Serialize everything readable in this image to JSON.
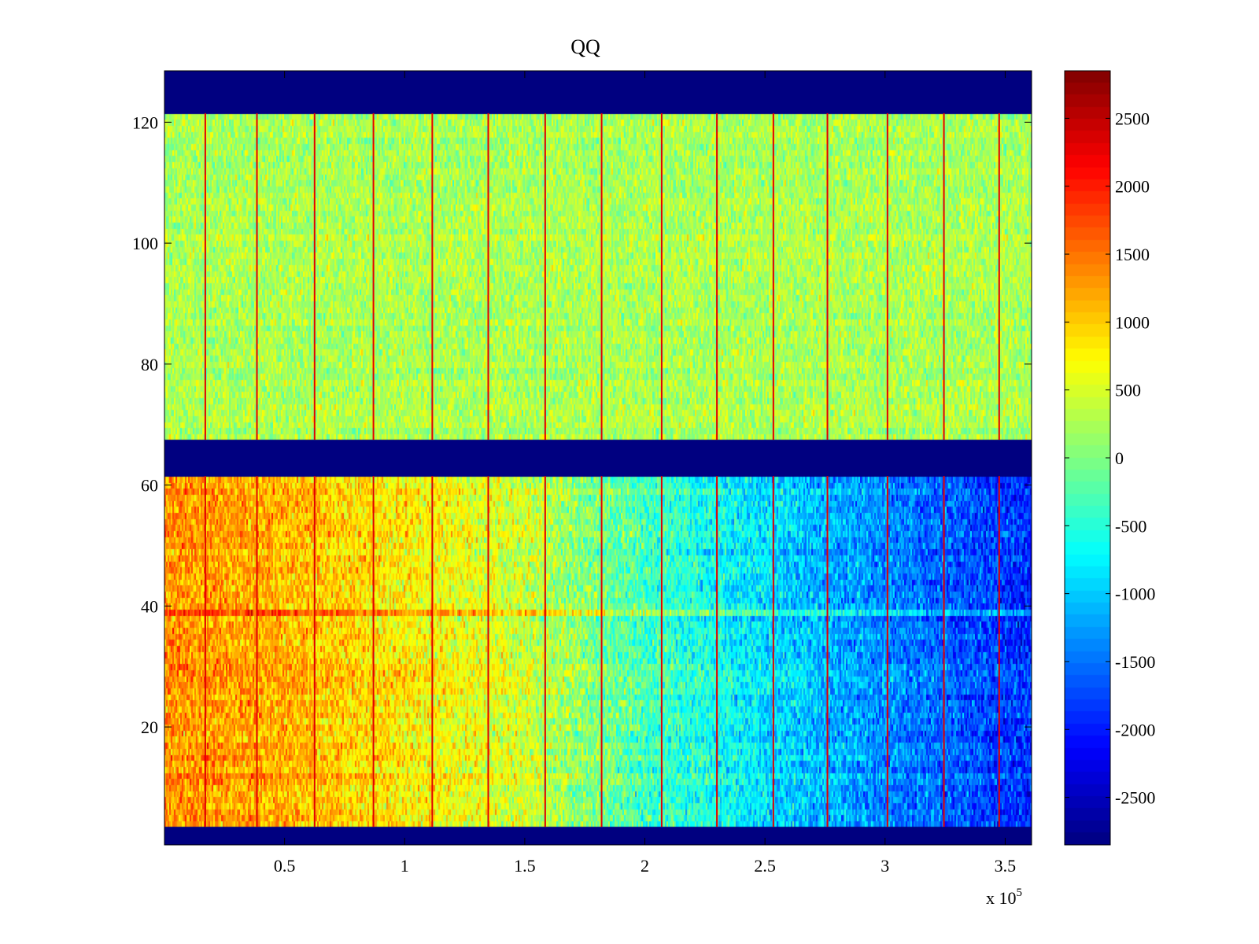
{
  "chart_data": {
    "type": "heatmap",
    "title": "QQ",
    "xlabel": "",
    "ylabel": "",
    "x_range": [
      0,
      361000
    ],
    "y_range": [
      0.5,
      128.5
    ],
    "x_ticks": [
      50000,
      100000,
      150000,
      200000,
      250000,
      300000,
      350000
    ],
    "x_tick_labels": [
      "0.5",
      "1",
      "1.5",
      "2",
      "2.5",
      "3",
      "3.5"
    ],
    "x_exponent_label": "x 10",
    "x_exponent_power": "5",
    "y_ticks": [
      20,
      40,
      60,
      80,
      100,
      120
    ],
    "y_tick_labels": [
      "20",
      "40",
      "60",
      "80",
      "100",
      "120"
    ],
    "colormap": "jet",
    "color_range": [
      -2850,
      2850
    ],
    "colorbar_ticks": [
      2500,
      2000,
      1500,
      1000,
      500,
      0,
      -500,
      -1000,
      -1500,
      -2000,
      -2500
    ],
    "colorbar_tick_labels": [
      "2500",
      "2000",
      "1500",
      "1000",
      "500",
      "0",
      "-500",
      "-1000",
      "-1500",
      "-2000",
      "-2500"
    ],
    "masked_row_bands": [
      [
        121.5,
        128.5
      ],
      [
        61.5,
        67.5
      ],
      [
        0.5,
        3.5
      ]
    ],
    "masked_value": -2850,
    "upper_block": {
      "rows": [
        67.5,
        121.5
      ],
      "mean_value": 250,
      "noise": 350
    },
    "lower_block": {
      "rows": [
        3.5,
        61.5
      ],
      "trend_x": [
        0,
        50000,
        100000,
        150000,
        200000,
        250000,
        300000,
        361000
      ],
      "trend_value": [
        1350,
        1150,
        800,
        450,
        -300,
        -850,
        -1350,
        -1900
      ],
      "noise": 450
    },
    "highlight_row": {
      "row": 39,
      "offset": 500
    },
    "vertical_line_x": [
      17000,
      38500,
      62500,
      87000,
      111500,
      134800,
      158500,
      182000,
      207000,
      230000,
      253500,
      276000,
      301000,
      324500,
      347500
    ],
    "vertical_line_value": 2300
  }
}
